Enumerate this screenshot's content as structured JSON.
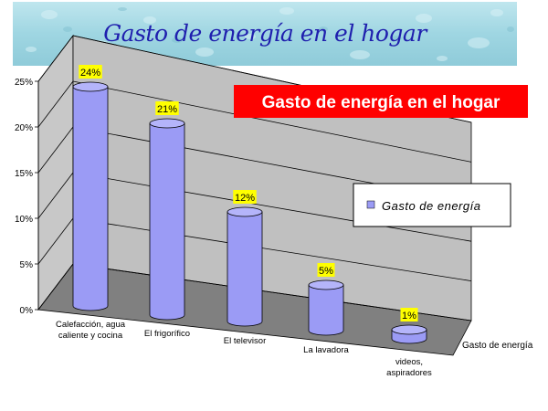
{
  "banner": {
    "title": "Gasto de energía en el hogar"
  },
  "chart_data": {
    "type": "bar",
    "title": "Gasto de energía en el hogar",
    "categories": [
      "Calefacción, agua caliente y cocina",
      "El frigorífico",
      "El televisor",
      "La lavadora",
      "videos, aspiradores"
    ],
    "category_lines": [
      [
        "Calefacción, agua",
        "caliente y cocina"
      ],
      [
        "El frigorífico"
      ],
      [
        "El televisor"
      ],
      [
        "La lavadora"
      ],
      [
        "videos,",
        "aspiradores"
      ]
    ],
    "series": [
      {
        "name": "Gasto de energía",
        "values": [
          24,
          21,
          12,
          5,
          1
        ]
      }
    ],
    "value_labels": [
      "24%",
      "21%",
      "12%",
      "5%",
      "1%"
    ],
    "yticks": [
      "0%",
      "5%",
      "10%",
      "15%",
      "20%",
      "25%"
    ],
    "ylim": [
      0,
      25
    ],
    "depth_axis_label": "Gasto de energía",
    "legend": "right",
    "grid": true,
    "bar_color": "#9b9bf5",
    "label_color": "#ffff00",
    "title_bg": "#ff0000"
  }
}
